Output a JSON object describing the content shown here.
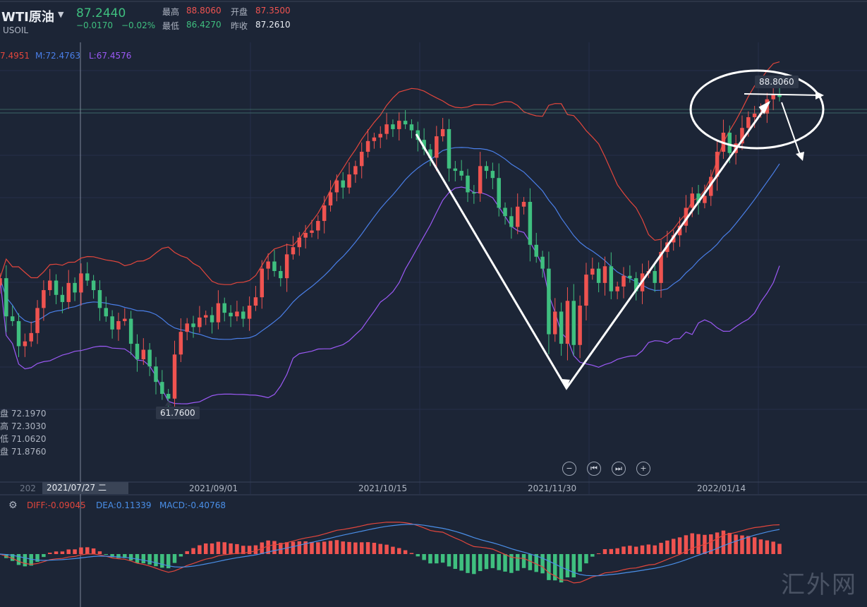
{
  "header": {
    "symbol": "WTI原油",
    "code": "USOIL",
    "last": "87.2440",
    "change": "−0.0170",
    "change_pct": "−0.02%",
    "high_label": "最高",
    "high": "88.8060",
    "open_label": "开盘",
    "open": "87.3500",
    "low_label": "最低",
    "low": "86.4270",
    "prev_label": "昨收",
    "prev_close": "87.2610"
  },
  "boll": {
    "upper": "7.4951",
    "middle": "M:72.4763",
    "lower": "L:67.4576"
  },
  "cursor_ohlc": [
    {
      "label": "盘",
      "value": "72.1970"
    },
    {
      "label": "高",
      "value": "72.3030"
    },
    {
      "label": "低",
      "value": "71.0620"
    },
    {
      "label": "盘",
      "value": "71.8760"
    }
  ],
  "cursor_date": "2021/07/27 二",
  "cursor_date_partial": "202",
  "x_ticks": [
    "2021/09/01",
    "2021/10/15",
    "2021/11/30",
    "2022/01/14"
  ],
  "macd": {
    "diff": "DIFF:-0.09045",
    "dea": "DEA:0.11339",
    "macd": "MACD:-0.40768"
  },
  "annotations": {
    "min_label": "61.7600",
    "max_label": "88.8060"
  },
  "nav_buttons": [
    "−",
    "⏮",
    "⏭",
    "+"
  ],
  "watermark": "汇外网",
  "colors": {
    "bg": "#1c2536",
    "up": "#ef5350",
    "down": "#3fbf7f",
    "upper_band": "#e2463c",
    "mid_band": "#4a7fe8",
    "lower_band": "#9b59f5",
    "diff_line": "#e2463c",
    "dea_line": "#4a8fe8"
  },
  "chart_data": {
    "type": "candlestick",
    "dates": [
      "2021-07-27",
      "2021-09-01",
      "2021-10-15",
      "2021-11-30",
      "2022-01-14"
    ],
    "close": [
      72.0,
      68.8,
      68.4,
      66.3,
      66.7,
      67.4,
      69.5,
      71.0,
      71.8,
      70.6,
      70.0,
      71.6,
      70.8,
      72.4,
      71.8,
      71.0,
      69.5,
      68.8,
      67.7,
      68.4,
      68.6,
      66.5,
      65.2,
      66.0,
      64.6,
      63.3,
      62.3,
      61.9,
      65.6,
      67.5,
      68.2,
      67.9,
      68.7,
      68.9,
      68.3,
      69.9,
      69.1,
      68.8,
      69.2,
      68.6,
      69.7,
      70.4,
      72.8,
      73.4,
      72.6,
      72.0,
      74.0,
      74.6,
      75.4,
      75.8,
      76.0,
      76.8,
      78.1,
      79.2,
      80.2,
      79.6,
      80.7,
      81.4,
      82.6,
      83.5,
      83.8,
      84.1,
      84.9,
      84.5,
      85.2,
      84.9,
      84.4,
      83.6,
      82.8,
      82.1,
      83.9,
      84.5,
      81.2,
      81.0,
      80.6,
      79.2,
      79.1,
      81.4,
      81.0,
      80.4,
      77.9,
      77.2,
      76.3,
      78.0,
      78.4,
      74.8,
      73.8,
      72.8,
      67.3,
      69.2,
      66.5,
      70.1,
      66.4,
      69.7,
      72.3,
      72.8,
      71.6,
      73.0,
      70.9,
      71.3,
      72.2,
      72.0,
      70.9,
      72.4,
      72.6,
      71.6,
      74.2,
      75.0,
      75.6,
      76.4,
      77.9,
      79.1,
      78.3,
      78.9,
      80.5,
      82.6,
      84.2,
      82.5,
      83.3,
      84.6,
      85.5,
      85.8,
      85.8,
      87.0,
      87.4,
      87.2
    ],
    "ylim": [
      61.0,
      90.0
    ],
    "min_label": 61.76,
    "max_label": 88.806
  }
}
